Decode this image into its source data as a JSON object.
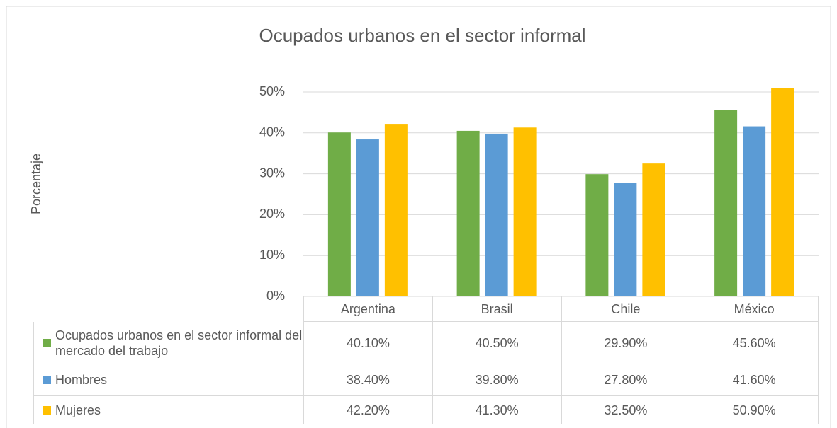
{
  "chart_data": {
    "type": "bar",
    "title": "Ocupados urbanos en el sector informal",
    "y_label": "Porcentaje",
    "categories": [
      "Argentina",
      "Brasil",
      "Chile",
      "México"
    ],
    "series": [
      {
        "name": "Ocupados urbanos en el sector informal del mercado del trabajo",
        "color": "#70ad47",
        "values": [
          40.1,
          40.5,
          29.9,
          45.6
        ],
        "value_labels": [
          "40.10%",
          "40.50%",
          "29.90%",
          "45.60%"
        ]
      },
      {
        "name": "Hombres",
        "color": "#5b9bd5",
        "values": [
          38.4,
          39.8,
          27.8,
          41.6
        ],
        "value_labels": [
          "38.40%",
          "39.80%",
          "27.80%",
          "41.60%"
        ]
      },
      {
        "name": "Mujeres",
        "color": "#ffc000",
        "values": [
          42.2,
          41.3,
          32.5,
          50.9
        ],
        "value_labels": [
          "42.20%",
          "41.30%",
          "32.50%",
          "50.90%"
        ]
      }
    ],
    "ylim": [
      0,
      50
    ],
    "yticks": [
      {
        "value": 0,
        "label": "0%"
      },
      {
        "value": 10,
        "label": "10%"
      },
      {
        "value": 20,
        "label": "20%"
      },
      {
        "value": 30,
        "label": "30%"
      },
      {
        "value": 40,
        "label": "40%"
      },
      {
        "value": 50,
        "label": "50%"
      }
    ],
    "grid": true
  }
}
